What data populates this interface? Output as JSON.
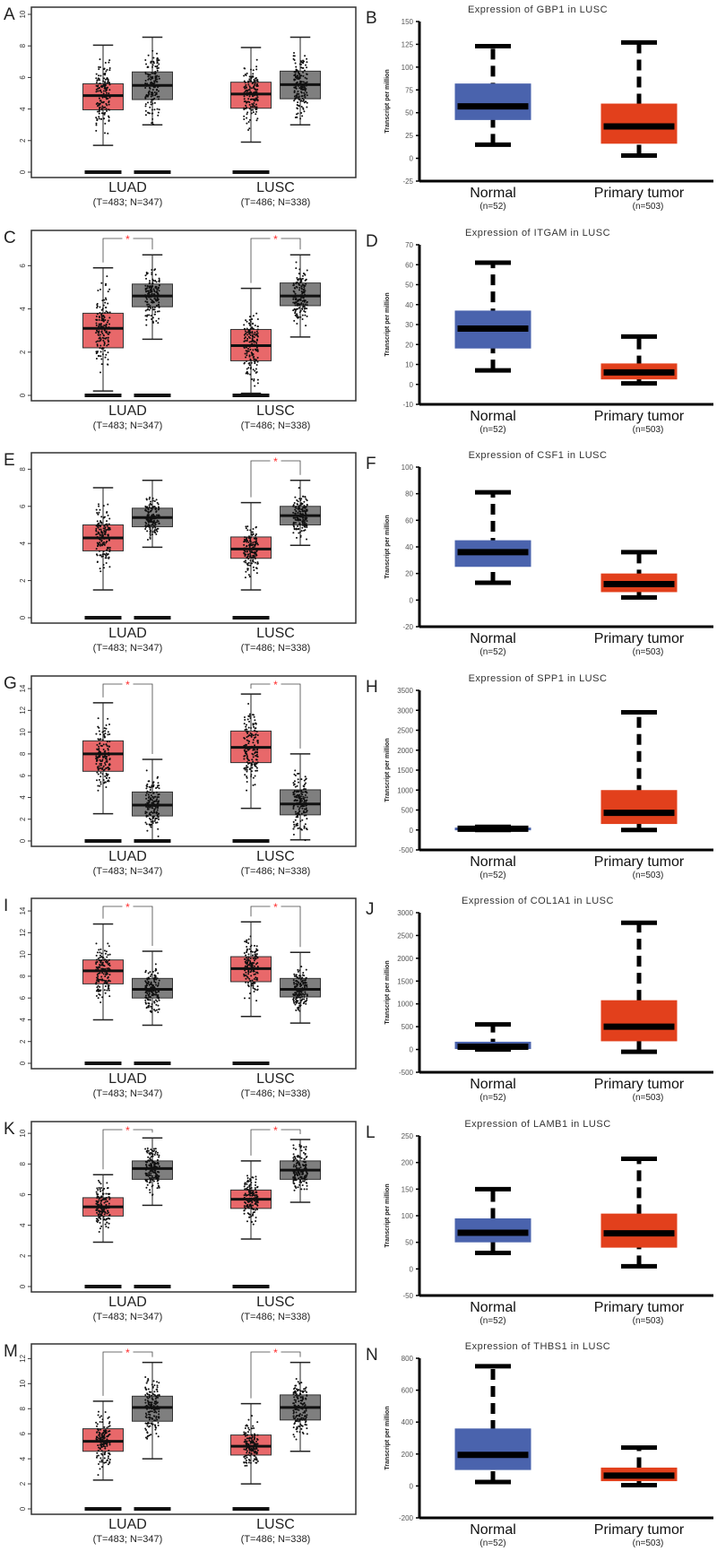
{
  "colors": {
    "tumor_left": "#e8686a",
    "normal_left": "#7f7f7f",
    "normal_right": "#4a63ad",
    "tumor_right": "#e2401c",
    "sig": "#ff2a2a"
  },
  "chart_data": [
    {
      "type": "box",
      "panel": "A",
      "categories": [
        "LUAD",
        "LUSC"
      ],
      "sample_sizes": [
        "(T=483; N=347)",
        "(T=486; N=338)"
      ],
      "ylim": [
        0,
        10
      ],
      "yticks": [
        0,
        2,
        4,
        6,
        8,
        10
      ],
      "boxes": [
        [
          1.7,
          3.95,
          4.85,
          5.6,
          8.05
        ],
        [
          3.0,
          4.6,
          5.5,
          6.35,
          8.55
        ],
        [
          1.9,
          4.05,
          4.95,
          5.7,
          7.9
        ],
        [
          3.0,
          4.65,
          5.55,
          6.4,
          8.55
        ]
      ],
      "significant": [
        false,
        false
      ],
      "sig_label": "*"
    },
    {
      "type": "box",
      "panel": "B",
      "title": "Expression of GBP1 in LUSC",
      "ylabel": "Transcript per million",
      "categories": [
        "Normal",
        "Primary tumor"
      ],
      "sample_sizes": [
        "(n=52)",
        "(n=503)"
      ],
      "ylim": [
        -25,
        150
      ],
      "yticks": [
        -25,
        0,
        25,
        50,
        75,
        100,
        125,
        150
      ],
      "boxes": [
        [
          15,
          42,
          57,
          82,
          123
        ],
        [
          3,
          16,
          35,
          60,
          127
        ]
      ]
    },
    {
      "type": "box",
      "panel": "C",
      "categories": [
        "LUAD",
        "LUSC"
      ],
      "sample_sizes": [
        "(T=483; N=347)",
        "(T=486; N=338)"
      ],
      "ylim": [
        0,
        7.3
      ],
      "yticks": [
        0,
        2,
        4,
        6
      ],
      "boxes": [
        [
          0.2,
          2.2,
          3.1,
          3.8,
          5.9
        ],
        [
          2.6,
          4.1,
          4.6,
          5.15,
          6.5
        ],
        [
          0.1,
          1.6,
          2.3,
          3.05,
          4.95
        ],
        [
          2.7,
          4.15,
          4.6,
          5.2,
          6.5
        ]
      ],
      "significant": [
        true,
        true
      ],
      "sig_label": "*"
    },
    {
      "type": "box",
      "panel": "D",
      "title": "Expression of ITGAM in LUSC",
      "ylabel": "Transcript per million",
      "categories": [
        "Normal",
        "Primary tumor"
      ],
      "sample_sizes": [
        "(n=52)",
        "(n=503)"
      ],
      "ylim": [
        -10,
        70
      ],
      "yticks": [
        -10,
        0,
        10,
        20,
        30,
        40,
        50,
        60,
        70
      ],
      "boxes": [
        [
          7,
          18,
          28,
          37,
          61
        ],
        [
          0.5,
          2.5,
          6,
          10.5,
          24
        ]
      ]
    },
    {
      "type": "box",
      "panel": "E",
      "categories": [
        "LUAD",
        "LUSC"
      ],
      "sample_sizes": [
        "(T=483; N=347)",
        "(T=486; N=338)"
      ],
      "ylim": [
        0,
        8.5
      ],
      "yticks": [
        0,
        2,
        4,
        6,
        8
      ],
      "boxes": [
        [
          1.5,
          3.6,
          4.3,
          5.0,
          7.0
        ],
        [
          3.8,
          4.9,
          5.4,
          5.9,
          7.4
        ],
        [
          1.5,
          3.2,
          3.7,
          4.35,
          6.2
        ],
        [
          3.9,
          5.0,
          5.5,
          6.0,
          7.4
        ]
      ],
      "significant": [
        false,
        true
      ],
      "sig_label": "*"
    },
    {
      "type": "box",
      "panel": "F",
      "title": "Expression of CSF1 in LUSC",
      "ylabel": "Transcript per million",
      "categories": [
        "Normal",
        "Primary tumor"
      ],
      "sample_sizes": [
        "(n=52)",
        "(n=503)"
      ],
      "ylim": [
        -20,
        100
      ],
      "yticks": [
        -20,
        0,
        20,
        40,
        60,
        80,
        100
      ],
      "boxes": [
        [
          13,
          25,
          36,
          45,
          81
        ],
        [
          2,
          6,
          12,
          20,
          36
        ]
      ]
    },
    {
      "type": "box",
      "panel": "G",
      "categories": [
        "LUAD",
        "LUSC"
      ],
      "sample_sizes": [
        "(T=483; N=347)",
        "(T=486; N=338)"
      ],
      "ylim": [
        0,
        14.5
      ],
      "yticks": [
        0,
        2,
        4,
        6,
        8,
        10,
        12,
        14
      ],
      "boxes": [
        [
          2.5,
          6.4,
          8.0,
          9.2,
          12.7
        ],
        [
          0.1,
          2.3,
          3.3,
          4.5,
          7.5
        ],
        [
          3.0,
          7.2,
          8.6,
          10.1,
          13.5
        ],
        [
          0.1,
          2.4,
          3.4,
          4.7,
          8.0
        ]
      ],
      "significant": [
        true,
        true
      ],
      "sig_label": "*"
    },
    {
      "type": "box",
      "panel": "H",
      "title": "Expression of SPP1 in LUSC",
      "ylabel": "Transcript per million",
      "categories": [
        "Normal",
        "Primary tumor"
      ],
      "sample_sizes": [
        "(n=52)",
        "(n=503)"
      ],
      "ylim": [
        -500,
        3500
      ],
      "yticks": [
        -500,
        0,
        500,
        1000,
        1500,
        2000,
        2500,
        3000,
        3500
      ],
      "boxes": [
        [
          0,
          10,
          30,
          60,
          80
        ],
        [
          0,
          150,
          430,
          1000,
          2950
        ]
      ]
    },
    {
      "type": "box",
      "panel": "I",
      "categories": [
        "LUAD",
        "LUSC"
      ],
      "sample_sizes": [
        "(T=483; N=347)",
        "(T=486; N=338)"
      ],
      "ylim": [
        0,
        14.5
      ],
      "yticks": [
        0,
        2,
        4,
        6,
        8,
        10,
        12,
        14
      ],
      "boxes": [
        [
          4.0,
          7.3,
          8.5,
          9.5,
          12.8
        ],
        [
          3.5,
          6.0,
          6.8,
          7.8,
          10.3
        ],
        [
          4.3,
          7.5,
          8.7,
          9.8,
          13.0
        ],
        [
          3.7,
          6.1,
          6.8,
          7.8,
          10.2
        ]
      ],
      "significant": [
        true,
        true
      ],
      "sig_label": "*"
    },
    {
      "type": "box",
      "panel": "J",
      "title": "Expression of COL1A1 in LUSC",
      "ylabel": "Transcript per million",
      "categories": [
        "Normal",
        "Primary tumor"
      ],
      "sample_sizes": [
        "(n=52)",
        "(n=503)"
      ],
      "ylim": [
        -500,
        3000
      ],
      "yticks": [
        -500,
        0,
        500,
        1000,
        1500,
        2000,
        2500,
        3000
      ],
      "boxes": [
        [
          0,
          10,
          60,
          170,
          550
        ],
        [
          -50,
          180,
          500,
          1080,
          2780
        ]
      ]
    },
    {
      "type": "box",
      "panel": "K",
      "categories": [
        "LUAD",
        "LUSC"
      ],
      "sample_sizes": [
        "(T=483; N=347)",
        "(T=486; N=338)"
      ],
      "ylim": [
        0,
        10.3
      ],
      "yticks": [
        0,
        2,
        4,
        6,
        8,
        10
      ],
      "boxes": [
        [
          2.9,
          4.6,
          5.2,
          5.8,
          7.3
        ],
        [
          5.3,
          7.0,
          7.7,
          8.2,
          9.7
        ],
        [
          3.1,
          5.1,
          5.7,
          6.3,
          8.2
        ],
        [
          5.5,
          7.0,
          7.6,
          8.2,
          9.6
        ]
      ],
      "significant": [
        true,
        true
      ],
      "sig_label": "*"
    },
    {
      "type": "box",
      "panel": "L",
      "title": "Expression of LAMB1 in LUSC",
      "ylabel": "Transcript per million",
      "categories": [
        "Normal",
        "Primary tumor"
      ],
      "sample_sizes": [
        "(n=52)",
        "(n=503)"
      ],
      "ylim": [
        -50,
        250
      ],
      "yticks": [
        -50,
        0,
        50,
        100,
        150,
        200,
        250
      ],
      "boxes": [
        [
          30,
          50,
          68,
          95,
          150
        ],
        [
          5,
          40,
          67,
          104,
          207
        ]
      ]
    },
    {
      "type": "box",
      "panel": "M",
      "categories": [
        "LUAD",
        "LUSC"
      ],
      "sample_sizes": [
        "(T=483; N=347)",
        "(T=486; N=338)"
      ],
      "ylim": [
        0,
        12.6
      ],
      "yticks": [
        0,
        2,
        4,
        6,
        8,
        10,
        12
      ],
      "boxes": [
        [
          2.3,
          4.6,
          5.4,
          6.4,
          8.6
        ],
        [
          4.0,
          7.0,
          8.1,
          9.0,
          11.7
        ],
        [
          2.0,
          4.3,
          5.0,
          5.9,
          8.4
        ],
        [
          4.6,
          7.1,
          8.1,
          9.1,
          11.7
        ]
      ],
      "significant": [
        true,
        true
      ],
      "sig_label": "*"
    },
    {
      "type": "box",
      "panel": "N",
      "title": "Expression of THBS1 in LUSC",
      "ylabel": "Transcript per million",
      "categories": [
        "Normal",
        "Primary tumor"
      ],
      "sample_sizes": [
        "(n=52)",
        "(n=503)"
      ],
      "ylim": [
        -200,
        800
      ],
      "yticks": [
        -200,
        0,
        200,
        400,
        600,
        800
      ],
      "boxes": [
        [
          25,
          100,
          195,
          360,
          750
        ],
        [
          5,
          30,
          65,
          115,
          240
        ]
      ]
    }
  ]
}
